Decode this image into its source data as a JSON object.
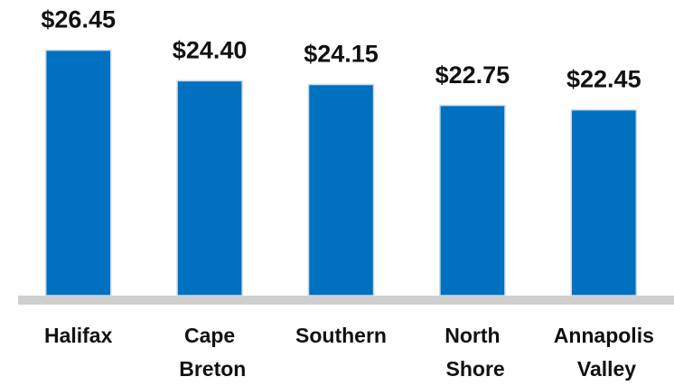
{
  "chart_data": {
    "type": "bar",
    "categories": [
      "Halifax",
      "Cape Breton",
      "Southern",
      "North Shore",
      "Annapolis Valley"
    ],
    "values": [
      26.45,
      24.4,
      24.15,
      22.75,
      22.45
    ],
    "value_labels": [
      "$26.45",
      "$24.40",
      "$24.15",
      "$22.75",
      "$22.45"
    ],
    "color": "#0070c0",
    "ylim": [
      10,
      28
    ]
  }
}
